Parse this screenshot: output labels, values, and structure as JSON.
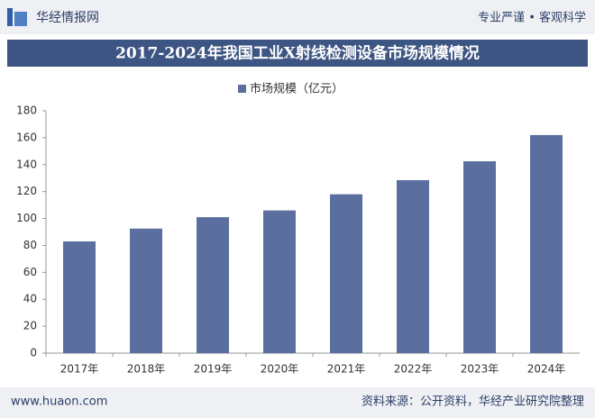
{
  "header": {
    "brand": "华经情报网",
    "slogan": "专业严谨 • 客观科学"
  },
  "chart_data": {
    "type": "bar",
    "title": "2017-2024年我国工业X射线检测设备市场规模情况",
    "categories": [
      "2017年",
      "2018年",
      "2019年",
      "2020年",
      "2021年",
      "2022年",
      "2023年",
      "2024年"
    ],
    "series": [
      {
        "name": "市场规模（亿元）",
        "color": "#5b6f9e",
        "values": [
          83,
          92.5,
          101,
          106,
          118,
          128.5,
          142.5,
          162
        ]
      }
    ],
    "ylim": [
      0,
      180
    ],
    "yticks": [
      0,
      20,
      40,
      60,
      80,
      100,
      120,
      140,
      160,
      180
    ],
    "grid": false
  },
  "footer": {
    "site": "www.huaon.com",
    "source": "资料来源：公开资料，华经产业研究院整理"
  }
}
